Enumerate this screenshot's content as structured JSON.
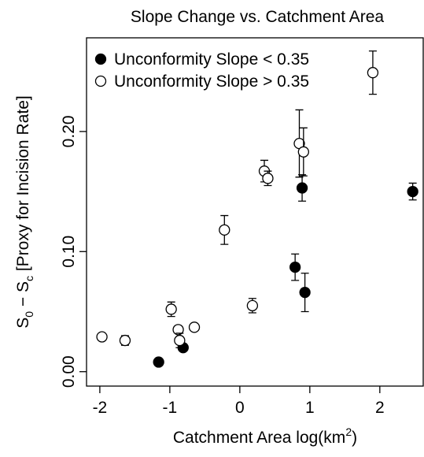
{
  "chart_data": {
    "type": "scatter",
    "title": "Slope Change vs. Catchment Area",
    "x_label": [
      "Catchment Area log(km",
      "2",
      ")"
    ],
    "y_label": [
      "S",
      "0",
      " − S",
      "c",
      " [Proxy for Incision Rate]"
    ],
    "xlim": [
      -2.19,
      2.62
    ],
    "ylim": [
      -0.012,
      0.278
    ],
    "xticks": [
      -2,
      -1,
      0,
      1,
      2
    ],
    "yticks": [
      {
        "value": 0,
        "label": "0.00"
      },
      {
        "value": 0.1,
        "label": "0.10"
      },
      {
        "value": 0.2,
        "label": "0.20"
      }
    ],
    "legend": "top-left",
    "series": [
      {
        "name": "Unconformity Slope < 0.35",
        "color": "#000000",
        "filled": true,
        "x": [
          -1.16,
          -0.81,
          0.79,
          0.89,
          0.93,
          2.47
        ],
        "values": [
          0.008,
          0.02,
          0.087,
          0.153,
          0.066,
          0.15
        ],
        "errors": [
          0.001,
          0.002,
          0.011,
          0.011,
          0.016,
          0.007
        ]
      },
      {
        "name": "Unconformity Slope > 0.35",
        "color": "#000000",
        "filled": false,
        "x": [
          -1.97,
          -1.64,
          -0.98,
          -0.88,
          -0.86,
          -0.65,
          -0.22,
          0.18,
          0.35,
          0.4,
          0.85,
          0.91,
          1.9
        ],
        "values": [
          0.029,
          0.026,
          0.052,
          0.035,
          0.026,
          0.037,
          0.118,
          0.055,
          0.167,
          0.161,
          0.19,
          0.183,
          0.249
        ],
        "errors": [
          0.002,
          0.004,
          0.006,
          0.003,
          0.006,
          0.003,
          0.012,
          0.006,
          0.009,
          0.006,
          0.028,
          0.02,
          0.018
        ]
      }
    ]
  }
}
